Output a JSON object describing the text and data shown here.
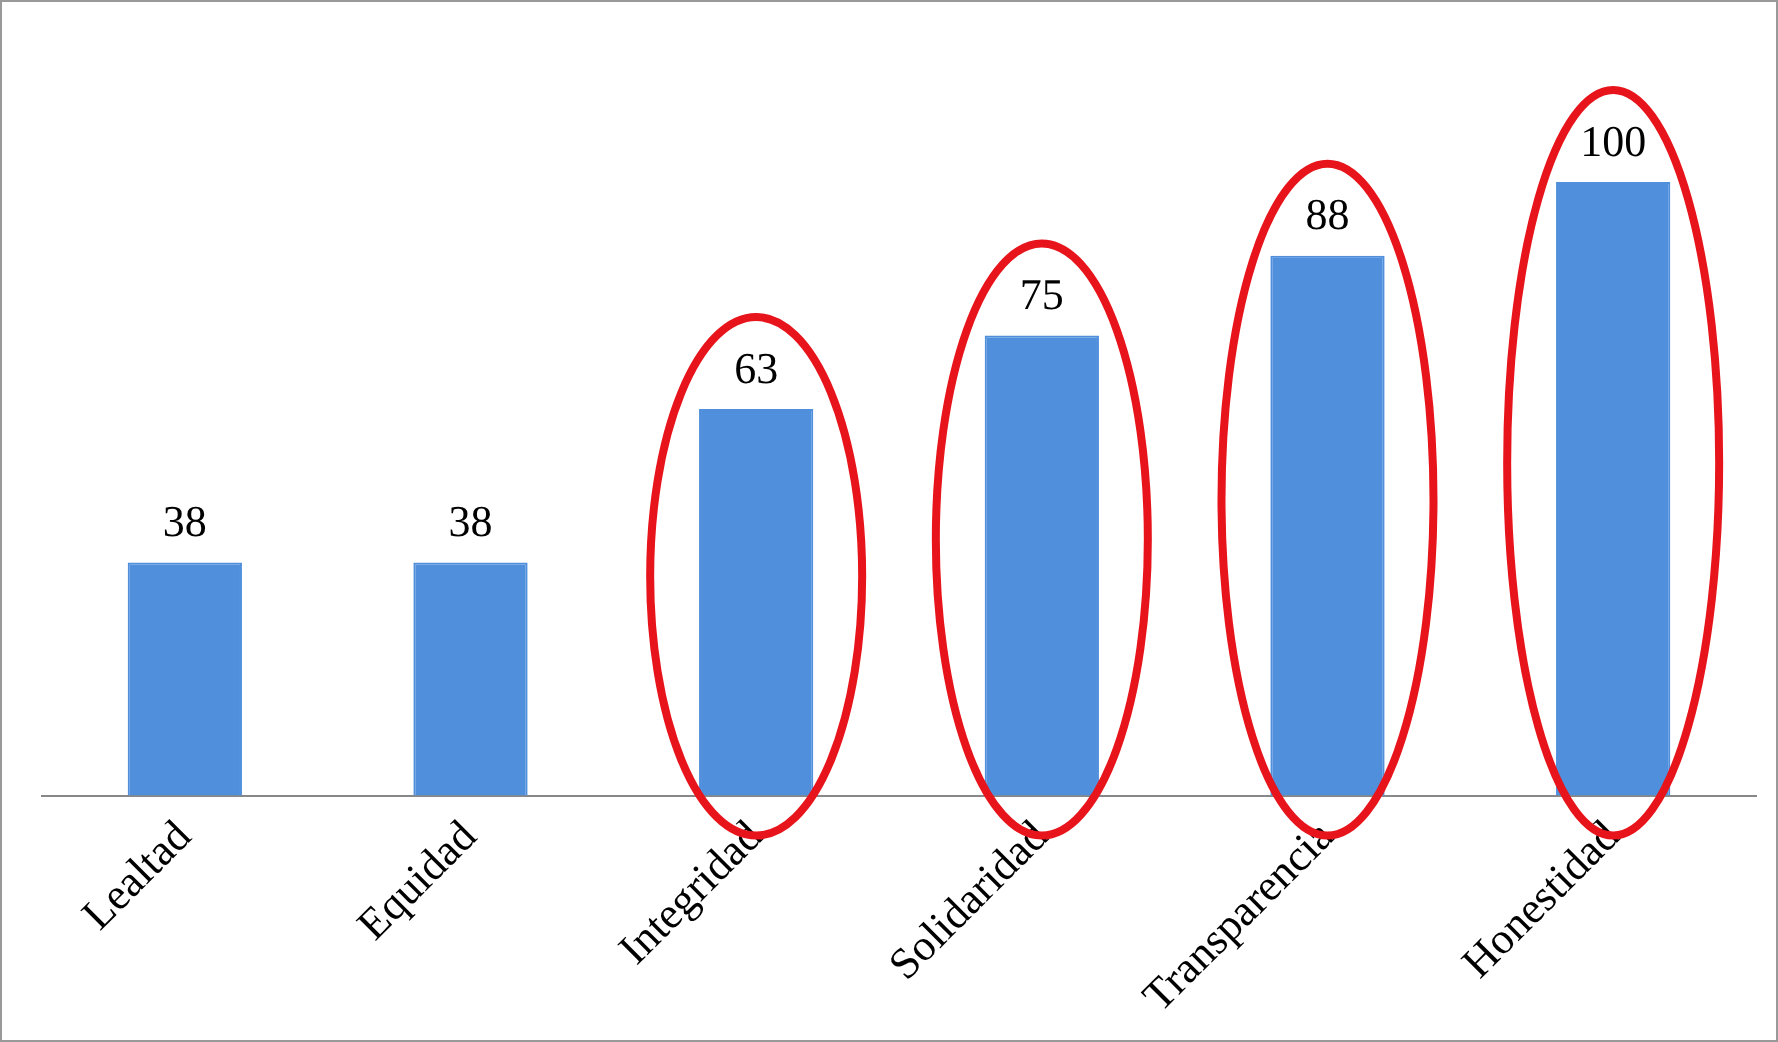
{
  "chart_data": {
    "type": "bar",
    "categories": [
      "Lealtad",
      "Equidad",
      "Integridad",
      "Solidaridad",
      "Transparencia",
      "Honestidad"
    ],
    "values": [
      38,
      38,
      63,
      75,
      88,
      100
    ],
    "color": "#4f8fdc",
    "ylim": [
      0,
      100
    ],
    "data_labels": true,
    "grid": false,
    "legend": false,
    "tick_labels": "x"
  }
}
